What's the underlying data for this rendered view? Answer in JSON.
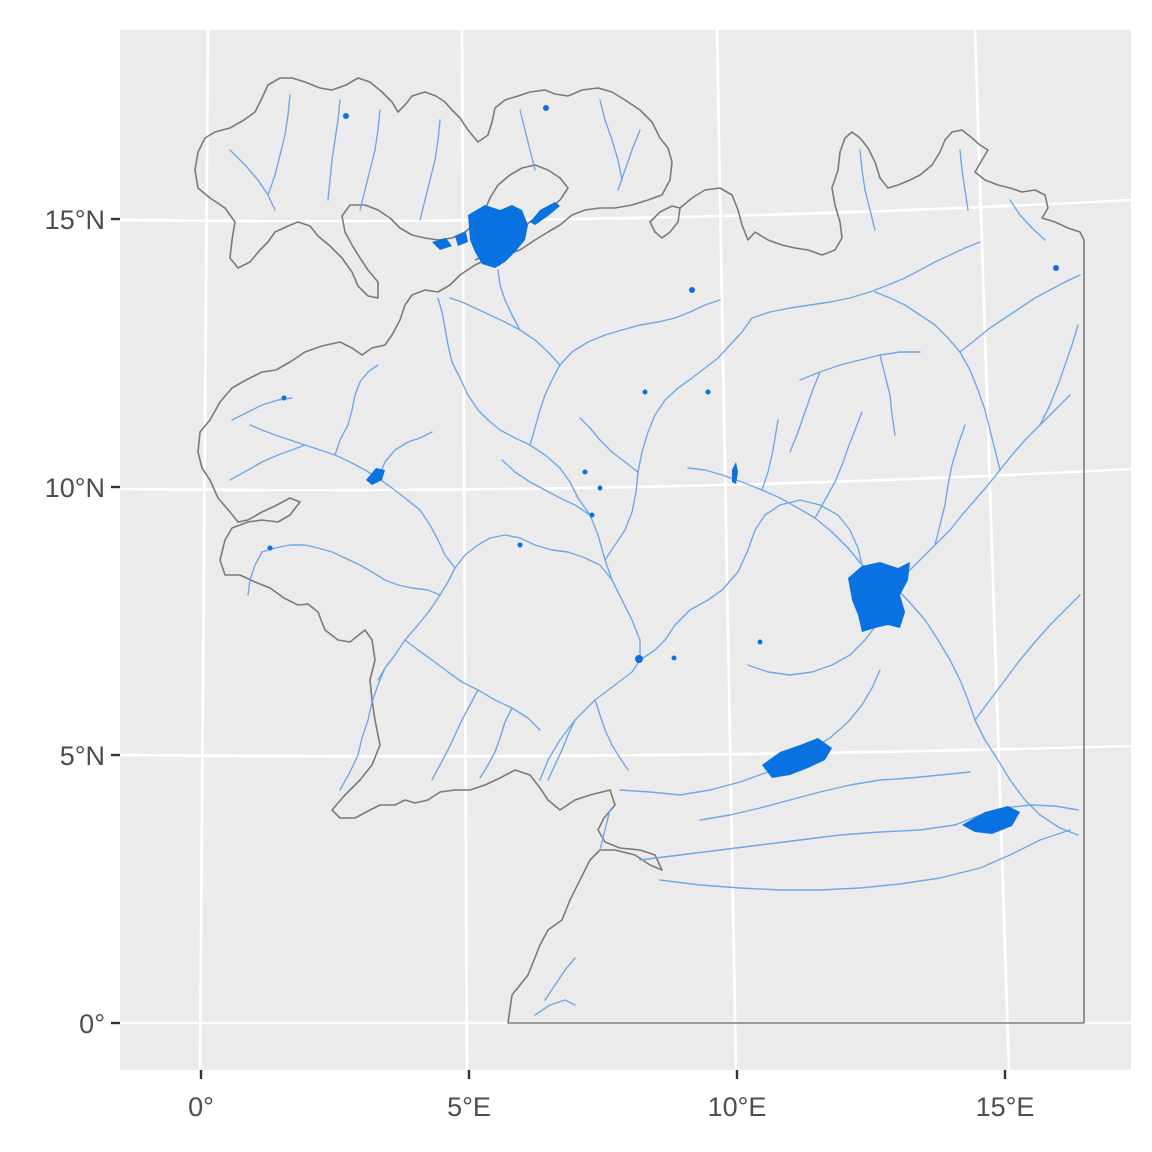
{
  "map": {
    "panel_background": "#ebebeb",
    "grid_color": "#ffffff",
    "coastline_color": "#7a7a7a",
    "river_color": "#6fa8e8",
    "lake_color": "#0a72e0",
    "x_axis": {
      "ticks": [
        {
          "value": 0,
          "label": "0°"
        },
        {
          "value": 5,
          "label": "5°E"
        },
        {
          "value": 10,
          "label": "10°E"
        },
        {
          "value": 15,
          "label": "15°E"
        }
      ]
    },
    "y_axis": {
      "ticks": [
        {
          "value": 0,
          "label": "0°"
        },
        {
          "value": 5,
          "label": "5°N"
        },
        {
          "value": 10,
          "label": "10°N"
        },
        {
          "value": 15,
          "label": "15°N"
        }
      ]
    },
    "layers": [
      "coastline",
      "rivers",
      "lakes"
    ]
  }
}
